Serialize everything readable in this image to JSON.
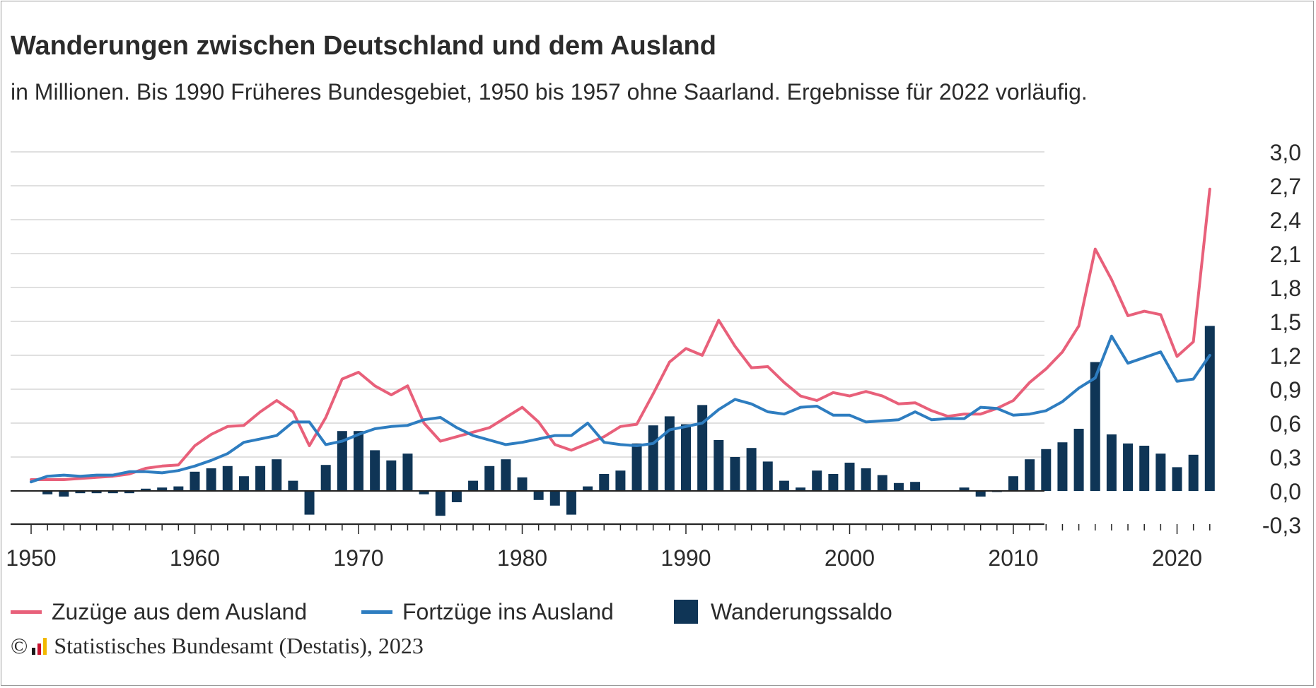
{
  "title": "Wanderungen zwischen Deutschland und dem Ausland",
  "subtitle": "in Millionen. Bis 1990 Früheres Bundesgebiet, 1950 bis 1957 ohne Saarland. Ergebnisse für 2022 vorläufig.",
  "source": "Statistisches Bundesamt (Destatis), 2023",
  "copyright_symbol": "©",
  "colors": {
    "zuzuege": "#e8607a",
    "fortzuege": "#2e7dc0",
    "saldo": "#0f3556",
    "grid": "#d6d6d6",
    "axis": "#222222"
  },
  "chart_data": {
    "type": "bar",
    "x": [
      1950,
      1951,
      1952,
      1953,
      1954,
      1955,
      1956,
      1957,
      1958,
      1959,
      1960,
      1961,
      1962,
      1963,
      1964,
      1965,
      1966,
      1967,
      1968,
      1969,
      1970,
      1971,
      1972,
      1973,
      1974,
      1975,
      1976,
      1977,
      1978,
      1979,
      1980,
      1981,
      1982,
      1983,
      1984,
      1985,
      1986,
      1987,
      1988,
      1989,
      1990,
      1991,
      1992,
      1993,
      1994,
      1995,
      1996,
      1997,
      1998,
      1999,
      2000,
      2001,
      2002,
      2003,
      2004,
      2005,
      2006,
      2007,
      2008,
      2009,
      2010,
      2011,
      2012,
      2013,
      2014,
      2015,
      2016,
      2017,
      2018,
      2019,
      2020,
      2021,
      2022
    ],
    "x_ticks": [
      "1950",
      "1960",
      "1970",
      "1980",
      "1990",
      "2000",
      "2010",
      "2020"
    ],
    "y_ticks": [
      "3,0",
      "2,7",
      "2,4",
      "2,1",
      "1,8",
      "1,5",
      "1,2",
      "0,9",
      "0,6",
      "0,3",
      "0,0",
      "-0,3"
    ],
    "ylim": [
      -0.3,
      3.0
    ],
    "grid": true,
    "legend_position": "bottom",
    "series": [
      {
        "name": "Zuzüge aus dem Ausland",
        "kind": "line",
        "values": [
          0.1,
          0.1,
          0.1,
          0.11,
          0.12,
          0.13,
          0.15,
          0.2,
          0.22,
          0.23,
          0.4,
          0.5,
          0.57,
          0.58,
          0.7,
          0.8,
          0.7,
          0.4,
          0.65,
          0.99,
          1.05,
          0.93,
          0.85,
          0.93,
          0.6,
          0.44,
          0.48,
          0.52,
          0.56,
          0.65,
          0.74,
          0.61,
          0.41,
          0.36,
          0.42,
          0.48,
          0.57,
          0.59,
          0.86,
          1.14,
          1.26,
          1.2,
          1.51,
          1.28,
          1.09,
          1.1,
          0.96,
          0.84,
          0.8,
          0.87,
          0.84,
          0.88,
          0.84,
          0.77,
          0.78,
          0.71,
          0.66,
          0.68,
          0.68,
          0.73,
          0.8,
          0.96,
          1.08,
          1.23,
          1.46,
          2.14,
          1.87,
          1.55,
          1.59,
          1.56,
          1.19,
          1.32,
          2.67
        ]
      },
      {
        "name": "Fortzüge ins Ausland",
        "kind": "line",
        "values": [
          0.08,
          0.13,
          0.14,
          0.13,
          0.14,
          0.14,
          0.17,
          0.17,
          0.16,
          0.18,
          0.22,
          0.27,
          0.33,
          0.43,
          0.46,
          0.49,
          0.61,
          0.61,
          0.41,
          0.44,
          0.5,
          0.55,
          0.57,
          0.58,
          0.63,
          0.65,
          0.56,
          0.49,
          0.45,
          0.41,
          0.43,
          0.46,
          0.49,
          0.49,
          0.6,
          0.43,
          0.41,
          0.4,
          0.42,
          0.54,
          0.57,
          0.6,
          0.72,
          0.81,
          0.77,
          0.7,
          0.68,
          0.74,
          0.75,
          0.67,
          0.67,
          0.61,
          0.62,
          0.63,
          0.7,
          0.63,
          0.64,
          0.64,
          0.74,
          0.73,
          0.67,
          0.68,
          0.71,
          0.79,
          0.91,
          1.0,
          1.37,
          1.13,
          1.18,
          1.23,
          0.97,
          0.99,
          1.2
        ]
      },
      {
        "name": "Wanderungssaldo",
        "kind": "bar",
        "values": [
          0.0,
          -0.03,
          -0.05,
          -0.02,
          -0.02,
          -0.02,
          -0.02,
          0.02,
          0.03,
          0.04,
          0.17,
          0.2,
          0.22,
          0.13,
          0.22,
          0.28,
          0.09,
          -0.21,
          0.23,
          0.53,
          0.53,
          0.36,
          0.27,
          0.33,
          -0.03,
          -0.22,
          -0.1,
          0.09,
          0.22,
          0.28,
          0.12,
          -0.08,
          -0.13,
          -0.21,
          0.04,
          0.15,
          0.18,
          0.42,
          0.58,
          0.66,
          0.59,
          0.76,
          0.45,
          0.3,
          0.38,
          0.26,
          0.09,
          0.03,
          0.18,
          0.15,
          0.25,
          0.2,
          0.14,
          0.07,
          0.08,
          0.0,
          0.0,
          0.03,
          -0.05,
          -0.01,
          0.13,
          0.28,
          0.37,
          0.43,
          0.55,
          1.14,
          0.5,
          0.42,
          0.4,
          0.33,
          0.21,
          0.32,
          1.46
        ]
      }
    ]
  }
}
